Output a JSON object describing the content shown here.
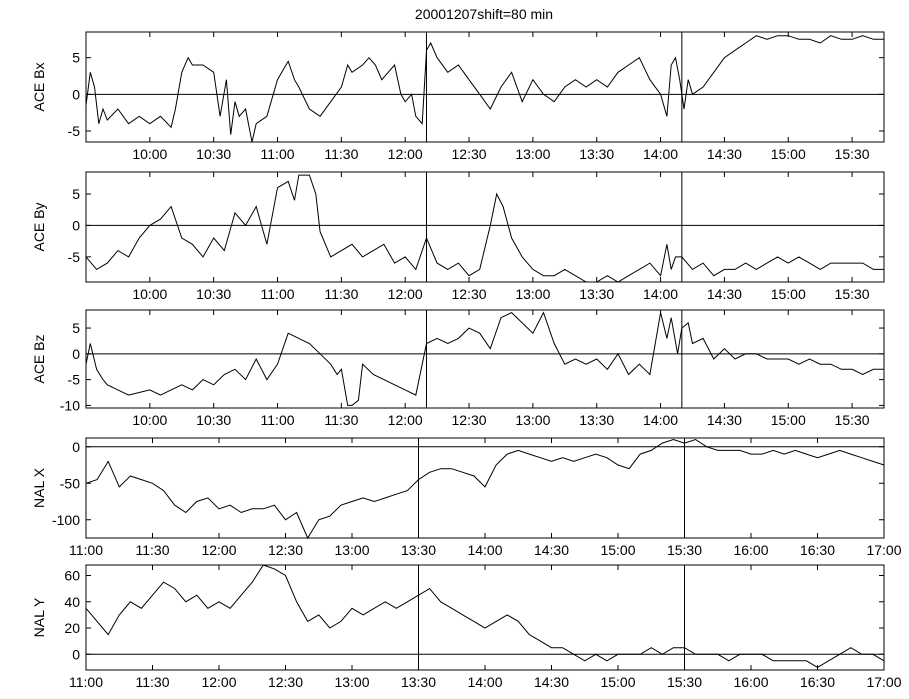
{
  "title": "20001207shift=80 min",
  "chart_data": [
    {
      "type": "line",
      "ylabel": "ACE Bx",
      "x_unit": "minutes since 00:00 UT",
      "xlim": [
        570,
        945
      ],
      "ylim": [
        -6.5,
        8.5
      ],
      "xticks": [
        600,
        630,
        660,
        690,
        720,
        750,
        780,
        810,
        840,
        870,
        900,
        930
      ],
      "xtick_labels": [
        "10:00",
        "10:30",
        "11:00",
        "11:30",
        "12:00",
        "12:30",
        "13:00",
        "13:30",
        "14:00",
        "14:30",
        "15:00",
        "15:30"
      ],
      "yticks": [
        -5,
        0,
        5
      ],
      "ytick_labels": [
        "-5",
        "0",
        "5"
      ],
      "zero_line": 0,
      "vlines": [
        730,
        850
      ],
      "series": [
        {
          "x": [
            570,
            572,
            574,
            576,
            578,
            580,
            585,
            590,
            595,
            600,
            605,
            610,
            612,
            615,
            618,
            620,
            625,
            630,
            633,
            636,
            638,
            640,
            642,
            645,
            648,
            650,
            655,
            660,
            662,
            665,
            668,
            670,
            675,
            680,
            685,
            690,
            693,
            695,
            700,
            703,
            706,
            709,
            712,
            715,
            718,
            720,
            723,
            725,
            728,
            730,
            732,
            735,
            740,
            745,
            750,
            755,
            760,
            765,
            770,
            775,
            780,
            785,
            790,
            795,
            800,
            805,
            810,
            815,
            820,
            825,
            830,
            835,
            840,
            843,
            845,
            847,
            849,
            851,
            853,
            855,
            860,
            865,
            870,
            875,
            880,
            885,
            890,
            895,
            900,
            905,
            910,
            915,
            920,
            925,
            930,
            935,
            940,
            945
          ],
          "y": [
            -1.5,
            3,
            1,
            -4,
            -2,
            -3.5,
            -2,
            -4,
            -3,
            -4,
            -3,
            -4.5,
            -2,
            3,
            5,
            4,
            4,
            3,
            -3,
            2,
            -5.5,
            -1,
            -3,
            -2,
            -6.5,
            -4,
            -3,
            2,
            3,
            4.5,
            2,
            1,
            -2,
            -3,
            -1,
            1,
            4,
            3,
            4,
            5,
            4,
            2,
            3,
            4,
            0,
            -1,
            0,
            -3,
            -4,
            6,
            7,
            5,
            3,
            4,
            2,
            0,
            -2,
            1,
            3,
            -1,
            2,
            0,
            -1,
            1,
            2,
            1,
            2,
            1,
            3,
            4,
            5,
            2,
            0,
            -3,
            4,
            5,
            2,
            -2,
            2,
            0,
            1,
            3,
            5,
            6,
            7,
            8,
            7.5,
            8,
            8,
            7.5,
            7.5,
            7,
            8,
            7.5,
            7.5,
            8,
            7.5,
            7.5
          ]
        }
      ]
    },
    {
      "type": "line",
      "ylabel": "ACE By",
      "x_unit": "minutes since 00:00 UT",
      "xlim": [
        570,
        945
      ],
      "ylim": [
        -9,
        8.5
      ],
      "xticks": [
        600,
        630,
        660,
        690,
        720,
        750,
        780,
        810,
        840,
        870,
        900,
        930
      ],
      "xtick_labels": [
        "10:00",
        "10:30",
        "11:00",
        "11:30",
        "12:00",
        "12:30",
        "13:00",
        "13:30",
        "14:00",
        "14:30",
        "15:00",
        "15:30"
      ],
      "yticks": [
        -5,
        0,
        5
      ],
      "ytick_labels": [
        "-5",
        "0",
        "5"
      ],
      "zero_line": 0,
      "vlines": [
        730,
        850
      ],
      "series": [
        {
          "x": [
            570,
            575,
            580,
            585,
            590,
            595,
            600,
            605,
            610,
            615,
            620,
            625,
            630,
            635,
            640,
            645,
            650,
            655,
            660,
            665,
            668,
            670,
            675,
            678,
            680,
            685,
            690,
            695,
            700,
            705,
            710,
            715,
            720,
            725,
            730,
            735,
            740,
            745,
            750,
            755,
            760,
            763,
            766,
            770,
            775,
            780,
            785,
            790,
            795,
            800,
            805,
            810,
            815,
            820,
            825,
            830,
            835,
            840,
            843,
            845,
            847,
            850,
            855,
            860,
            865,
            870,
            875,
            880,
            885,
            890,
            895,
            900,
            905,
            910,
            915,
            920,
            925,
            930,
            935,
            940,
            945
          ],
          "y": [
            -5,
            -7,
            -6,
            -4,
            -5,
            -2,
            0,
            1,
            3,
            -2,
            -3,
            -5,
            -2,
            -4,
            2,
            0,
            3,
            -3,
            6,
            7,
            4,
            8,
            8,
            5,
            -1,
            -5,
            -4,
            -3,
            -5,
            -4,
            -3,
            -6,
            -5,
            -7,
            -2,
            -6,
            -7,
            -6,
            -8,
            -7,
            0,
            5,
            3,
            -2,
            -5,
            -7,
            -8,
            -8,
            -7,
            -8,
            -9,
            -9,
            -8,
            -9,
            -8,
            -7,
            -6,
            -8,
            -3,
            -7,
            -5,
            -5,
            -7,
            -6,
            -8,
            -7,
            -7,
            -6,
            -7,
            -6,
            -5,
            -6,
            -5,
            -6,
            -7,
            -6,
            -6,
            -6,
            -6,
            -7,
            -7
          ]
        }
      ]
    },
    {
      "type": "line",
      "ylabel": "ACE Bz",
      "x_unit": "minutes since 00:00 UT",
      "xlim": [
        570,
        945
      ],
      "ylim": [
        -10.5,
        8.5
      ],
      "xticks": [
        600,
        630,
        660,
        690,
        720,
        750,
        780,
        810,
        840,
        870,
        900,
        930
      ],
      "xtick_labels": [
        "10:00",
        "10:30",
        "11:00",
        "11:30",
        "12:00",
        "12:30",
        "13:00",
        "13:30",
        "14:00",
        "14:30",
        "15:00",
        "15:30"
      ],
      "yticks": [
        -10,
        -5,
        0,
        5
      ],
      "ytick_labels": [
        "-10",
        "-5",
        "0",
        "5"
      ],
      "zero_line": 0,
      "vlines": [
        730,
        850
      ],
      "series": [
        {
          "x": [
            570,
            572,
            575,
            578,
            580,
            585,
            590,
            595,
            600,
            605,
            610,
            615,
            620,
            625,
            630,
            635,
            640,
            645,
            650,
            655,
            660,
            665,
            670,
            675,
            680,
            685,
            688,
            690,
            693,
            695,
            698,
            700,
            705,
            710,
            715,
            720,
            725,
            730,
            735,
            740,
            745,
            750,
            755,
            760,
            765,
            770,
            775,
            780,
            785,
            790,
            795,
            800,
            805,
            810,
            815,
            820,
            825,
            830,
            835,
            840,
            843,
            845,
            848,
            850,
            853,
            855,
            860,
            865,
            870,
            875,
            880,
            885,
            890,
            895,
            900,
            905,
            910,
            915,
            920,
            925,
            930,
            935,
            940,
            945
          ],
          "y": [
            -2,
            2,
            -3,
            -5,
            -6,
            -7,
            -8,
            -7.5,
            -7,
            -8,
            -7,
            -6,
            -7,
            -5,
            -6,
            -4,
            -3,
            -5,
            -1,
            -5,
            -2,
            4,
            3,
            2,
            0,
            -2,
            -4,
            -3,
            -10,
            -10,
            -9,
            -2,
            -4,
            -5,
            -6,
            -7,
            -8,
            2,
            3,
            2,
            3,
            5,
            4,
            1,
            7,
            8,
            6,
            4,
            8,
            2,
            -2,
            -1,
            -2,
            -1,
            -3,
            0,
            -4,
            -2,
            -4,
            8,
            3,
            7,
            0,
            5,
            6,
            2,
            3,
            -1,
            1,
            -1,
            0,
            0,
            -1,
            -1,
            -1,
            -2,
            -1,
            -2,
            -2,
            -3,
            -3,
            -4,
            -3,
            -3
          ]
        }
      ]
    },
    {
      "type": "line",
      "ylabel": "NAL X",
      "x_unit": "minutes since 00:00 UT",
      "xlim": [
        660,
        1020
      ],
      "ylim": [
        -125,
        12
      ],
      "xticks": [
        660,
        690,
        720,
        750,
        780,
        810,
        840,
        870,
        900,
        930,
        960,
        990,
        1020
      ],
      "xtick_labels": [
        "11:00",
        "11:30",
        "12:00",
        "12:30",
        "13:00",
        "13:30",
        "14:00",
        "14:30",
        "15:00",
        "15:30",
        "16:00",
        "16:30",
        "17:00"
      ],
      "yticks": [
        -100,
        -50,
        0
      ],
      "ytick_labels": [
        "-100",
        "-50",
        "0"
      ],
      "zero_line": 0,
      "vlines": [
        810,
        930
      ],
      "series": [
        {
          "x": [
            660,
            665,
            670,
            675,
            680,
            685,
            690,
            695,
            700,
            705,
            710,
            715,
            720,
            725,
            730,
            735,
            740,
            745,
            750,
            755,
            760,
            765,
            770,
            775,
            780,
            785,
            790,
            795,
            800,
            805,
            810,
            815,
            820,
            825,
            830,
            835,
            840,
            845,
            850,
            855,
            860,
            865,
            870,
            875,
            880,
            885,
            890,
            895,
            900,
            905,
            910,
            915,
            920,
            925,
            930,
            935,
            940,
            945,
            950,
            955,
            960,
            965,
            970,
            975,
            980,
            985,
            990,
            995,
            1000,
            1005,
            1010,
            1015,
            1020
          ],
          "y": [
            -50,
            -45,
            -20,
            -55,
            -40,
            -45,
            -50,
            -60,
            -80,
            -90,
            -75,
            -70,
            -85,
            -80,
            -90,
            -85,
            -85,
            -80,
            -100,
            -90,
            -125,
            -100,
            -95,
            -80,
            -75,
            -70,
            -75,
            -70,
            -65,
            -60,
            -45,
            -35,
            -30,
            -30,
            -35,
            -40,
            -55,
            -25,
            -10,
            -5,
            -10,
            -15,
            -20,
            -15,
            -20,
            -15,
            -10,
            -15,
            -25,
            -30,
            -10,
            -5,
            5,
            10,
            5,
            10,
            0,
            -5,
            -5,
            -5,
            -10,
            -10,
            -5,
            -10,
            -5,
            -10,
            -15,
            -10,
            -5,
            -10,
            -15,
            -20,
            -25
          ]
        }
      ]
    },
    {
      "type": "line",
      "ylabel": "NAL Y",
      "x_unit": "minutes since 00:00 UT",
      "xlim": [
        660,
        1020
      ],
      "ylim": [
        -12,
        68
      ],
      "xticks": [
        660,
        690,
        720,
        750,
        780,
        810,
        840,
        870,
        900,
        930,
        960,
        990,
        1020
      ],
      "xtick_labels": [
        "11:00",
        "11:30",
        "12:00",
        "12:30",
        "13:00",
        "13:30",
        "14:00",
        "14:30",
        "15:00",
        "15:30",
        "16:00",
        "16:30",
        "17:00"
      ],
      "yticks": [
        0,
        20,
        40,
        60
      ],
      "ytick_labels": [
        "0",
        "20",
        "40",
        "60"
      ],
      "zero_line": 0,
      "vlines": [
        810,
        930
      ],
      "series": [
        {
          "x": [
            660,
            665,
            670,
            675,
            680,
            685,
            690,
            695,
            700,
            705,
            710,
            715,
            720,
            725,
            730,
            735,
            740,
            745,
            750,
            755,
            760,
            765,
            770,
            775,
            780,
            785,
            790,
            795,
            800,
            805,
            810,
            815,
            820,
            825,
            830,
            835,
            840,
            845,
            850,
            855,
            860,
            865,
            870,
            875,
            880,
            885,
            890,
            895,
            900,
            905,
            910,
            915,
            920,
            925,
            930,
            935,
            940,
            945,
            950,
            955,
            960,
            965,
            970,
            975,
            980,
            985,
            990,
            995,
            1000,
            1005,
            1010,
            1015,
            1020
          ],
          "y": [
            35,
            25,
            15,
            30,
            40,
            35,
            45,
            55,
            50,
            40,
            45,
            35,
            40,
            35,
            45,
            55,
            68,
            65,
            60,
            40,
            25,
            30,
            20,
            25,
            35,
            30,
            35,
            40,
            35,
            40,
            45,
            50,
            40,
            35,
            30,
            25,
            20,
            25,
            30,
            25,
            15,
            10,
            5,
            5,
            0,
            -5,
            0,
            -5,
            0,
            0,
            0,
            5,
            0,
            5,
            5,
            0,
            0,
            0,
            -5,
            0,
            0,
            0,
            -5,
            -5,
            -5,
            -5,
            -10,
            -5,
            0,
            5,
            0,
            0,
            -5
          ]
        }
      ]
    }
  ]
}
